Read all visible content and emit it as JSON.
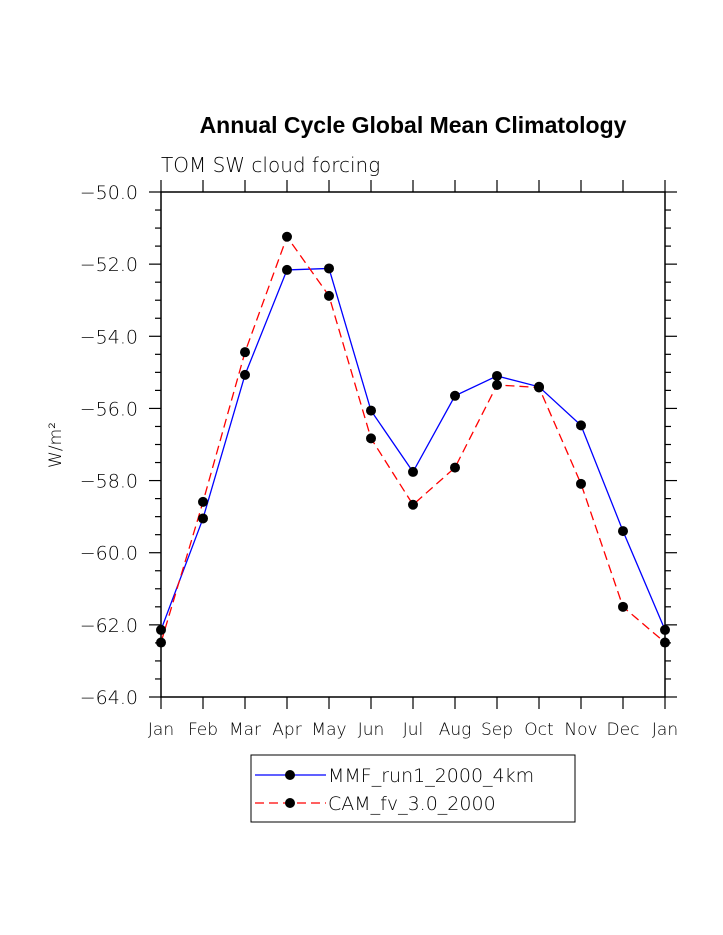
{
  "chart_data": {
    "type": "line",
    "title": "Annual Cycle Global Mean Climatology",
    "subtitle": "TOM SW cloud forcing",
    "xlabel": "",
    "ylabel": "W/m²",
    "categories": [
      "Jan",
      "Feb",
      "Mar",
      "Apr",
      "May",
      "Jun",
      "Jul",
      "Aug",
      "Sep",
      "Oct",
      "Nov",
      "Dec",
      "Jan"
    ],
    "ylim": [
      -64.0,
      -50.0
    ],
    "yticks": [
      "-50.0",
      "-52.0",
      "-54.0",
      "-56.0",
      "-58.0",
      "-60.0",
      "-62.0",
      "-64.0"
    ],
    "grid": false,
    "legend_placement": "bottom",
    "series": [
      {
        "name": "MMF_run1_2000_4km",
        "color": "#0000ff",
        "dash": false,
        "values": [
          -62.14,
          -59.05,
          -55.07,
          -52.16,
          -52.12,
          -56.06,
          -57.76,
          -55.65,
          -55.1,
          -55.4,
          -56.47,
          -59.4,
          -62.14
        ]
      },
      {
        "name": "CAM_fv_3.0_2000",
        "color": "#ff0000",
        "dash": true,
        "values": [
          -62.49,
          -58.59,
          -54.44,
          -51.24,
          -52.88,
          -56.83,
          -58.67,
          -57.64,
          -55.35,
          -55.42,
          -58.09,
          -61.5,
          -62.49
        ]
      }
    ]
  }
}
